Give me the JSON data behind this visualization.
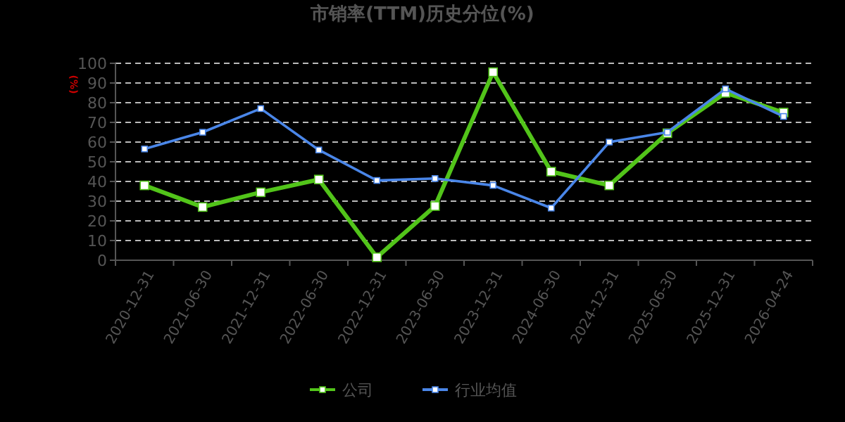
{
  "chart_data": {
    "type": "line",
    "title": "市销率(TTM)历史分位(%)",
    "ylabel": "(%)",
    "categories": [
      "2020-12-31",
      "2021-06-30",
      "2021-12-31",
      "2022-06-30",
      "2022-12-31",
      "2023-06-30",
      "2023-12-31",
      "2024-06-30",
      "2024-12-31",
      "2025-06-30",
      "2025-12-31",
      "2026-04-24"
    ],
    "series": [
      {
        "name": "公司",
        "color": "#52c41a",
        "values": [
          38,
          27,
          34.5,
          41,
          1.5,
          27.5,
          95.5,
          45,
          38,
          64.5,
          85,
          75
        ]
      },
      {
        "name": "行业均值",
        "color": "#4a86e8",
        "values": [
          56.5,
          65,
          77,
          56,
          40.5,
          41.5,
          38,
          26.5,
          60,
          65,
          87,
          73
        ]
      }
    ],
    "ylim": [
      0,
      100
    ],
    "yticks": [
      0,
      10,
      20,
      30,
      40,
      50,
      60,
      70,
      80,
      90,
      100
    ],
    "grid": "y",
    "legend": "bottom",
    "marker": "square",
    "line_style": "solid"
  }
}
